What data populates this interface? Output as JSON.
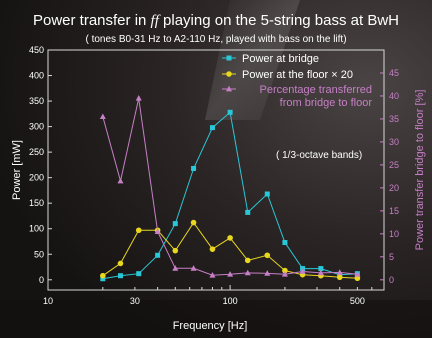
{
  "chart_data": {
    "type": "line",
    "title_before": "Power transfer in ",
    "title_dynamic": "ff",
    "title_after": " playing on the 5-string bass at BwH",
    "subtitle": "( tones B0-31 Hz to A2-110 Hz, played with bass on the lift)",
    "xlabel": "Frequency [Hz]",
    "ylabel": "Power [mW]",
    "y2label": "Power transfer bridge to floor [%]",
    "x_scale": "log",
    "xlim": [
      10,
      700
    ],
    "x_ticks": [
      10,
      30,
      100,
      500
    ],
    "ylim": [
      -20,
      450
    ],
    "y_ticks": [
      0,
      50,
      100,
      150,
      200,
      250,
      300,
      350,
      400,
      450
    ],
    "y2lim": [
      -2.22,
      50
    ],
    "y2_ticks": [
      0,
      5,
      10,
      15,
      20,
      25,
      30,
      35,
      40,
      45
    ],
    "annotation": "( 1/3-octave bands)",
    "legend_position": "top-right",
    "series": [
      {
        "name": "Power at bridge",
        "color": "#29c8d8",
        "marker": "square",
        "axis": "left",
        "x": [
          20,
          25,
          31.5,
          40,
          50,
          63,
          80,
          100,
          125,
          160,
          200,
          250,
          315,
          400,
          500
        ],
        "y": [
          2,
          8,
          12,
          48,
          110,
          218,
          298,
          328,
          132,
          168,
          73,
          22,
          22,
          10,
          12
        ]
      },
      {
        "name": "Power at the floor × 20",
        "color": "#e8d71e",
        "marker": "circle",
        "axis": "left",
        "x": [
          20,
          25,
          31.5,
          40,
          50,
          63,
          80,
          100,
          125,
          160,
          200,
          250,
          315,
          400,
          500
        ],
        "y": [
          8,
          32,
          97,
          97,
          57,
          112,
          60,
          82,
          38,
          48,
          18,
          10,
          8,
          5,
          3
        ]
      },
      {
        "name_lines": [
          "Percentage transferred",
          "from bridge to floor"
        ],
        "color": "#c77fc7",
        "marker": "triangle",
        "axis": "right",
        "x": [
          20,
          25,
          31.5,
          40,
          50,
          63,
          80,
          100,
          125,
          160,
          200,
          250,
          315,
          400,
          500
        ],
        "y": [
          35.5,
          21.5,
          39.5,
          10.5,
          2.5,
          2.5,
          1,
          1.2,
          1.5,
          1.4,
          1.2,
          1.8,
          1.5,
          1.6,
          1.2
        ]
      }
    ]
  }
}
